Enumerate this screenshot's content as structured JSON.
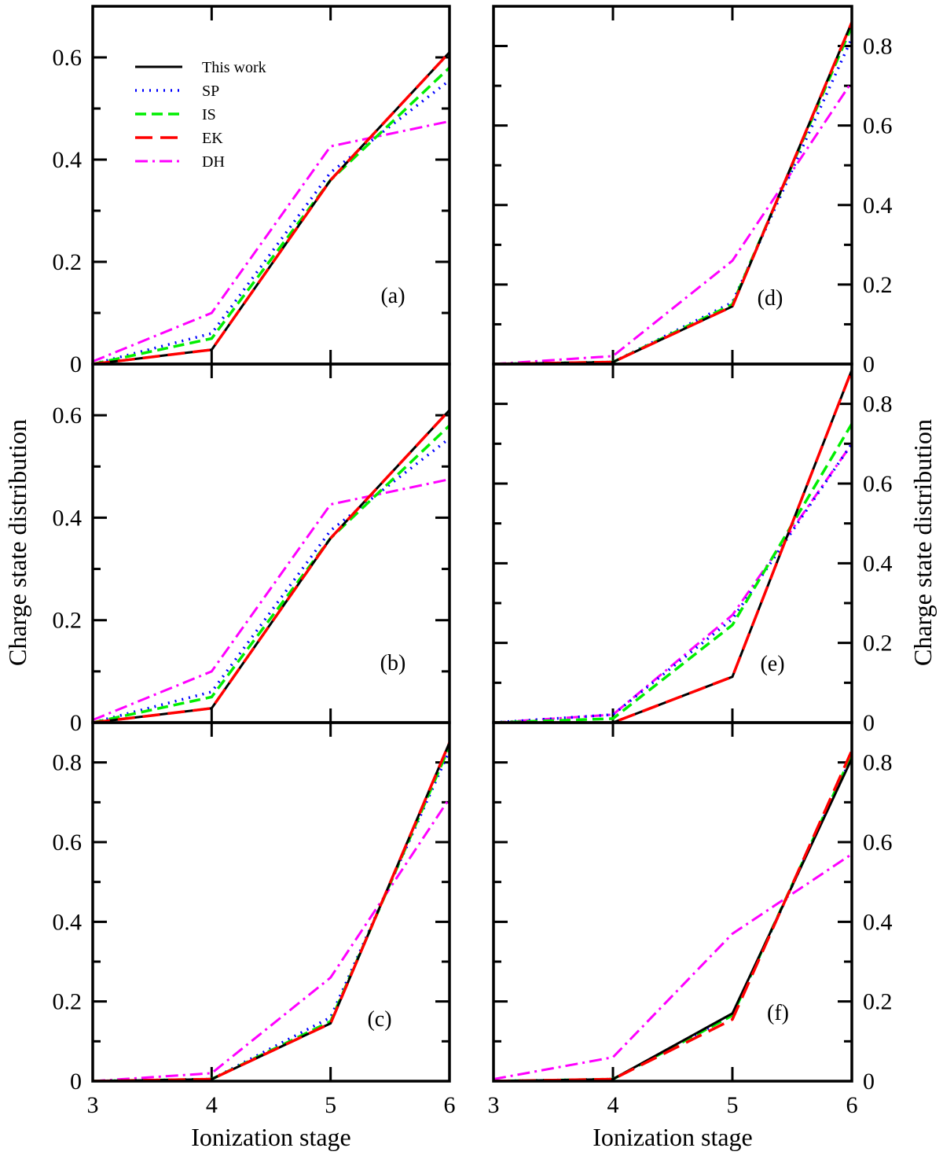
{
  "colors": {
    "This work": "#000000",
    "SP": "#0000ff",
    "IS": "#00ee00",
    "EK": "#ff0000",
    "DH": "#ff00ff"
  },
  "chart_data": {
    "type": "line",
    "xlabel": "Ionization stage",
    "ylabel": "Charge state distribution",
    "x": [
      3,
      4,
      5,
      6
    ],
    "xlim": [
      3,
      6
    ],
    "x_ticks": [
      "3",
      "4",
      "5",
      "6"
    ],
    "legend": {
      "placement": "top-left (panel a)",
      "entries": [
        "This work",
        "SP",
        "IS",
        "EK",
        "DH"
      ]
    },
    "panels": [
      {
        "label": "(a)",
        "ylim": [
          0,
          0.7
        ],
        "y_ticks": [
          "0",
          "0.2",
          "0.4",
          "0.6"
        ],
        "series": [
          {
            "name": "This work",
            "values": [
              0,
              0.028,
              0.36,
              0.61
            ]
          },
          {
            "name": "SP",
            "values": [
              0,
              0.06,
              0.375,
              0.555
            ]
          },
          {
            "name": "IS",
            "values": [
              0,
              0.05,
              0.36,
              0.58
            ]
          },
          {
            "name": "EK",
            "values": [
              0,
              0.028,
              0.36,
              0.61
            ]
          },
          {
            "name": "DH",
            "values": [
              0.005,
              0.1,
              0.426,
              0.475
            ]
          }
        ]
      },
      {
        "label": "(b)",
        "ylim": [
          0,
          0.7
        ],
        "y_ticks": [
          "0",
          "0.2",
          "0.4",
          "0.6"
        ],
        "series": [
          {
            "name": "This work",
            "values": [
              0,
              0.028,
              0.36,
              0.61
            ]
          },
          {
            "name": "SP",
            "values": [
              0,
              0.06,
              0.375,
              0.555
            ]
          },
          {
            "name": "IS",
            "values": [
              0,
              0.05,
              0.36,
              0.58
            ]
          },
          {
            "name": "EK",
            "values": [
              0,
              0.028,
              0.36,
              0.61
            ]
          },
          {
            "name": "DH",
            "values": [
              0.005,
              0.1,
              0.426,
              0.475
            ]
          }
        ]
      },
      {
        "label": "(c)",
        "ylim": [
          0,
          0.9
        ],
        "y_ticks": [
          "0",
          "0.2",
          "0.4",
          "0.6",
          "0.8"
        ],
        "series": [
          {
            "name": "This work",
            "values": [
              0,
              0.005,
              0.145,
              0.85
            ]
          },
          {
            "name": "SP",
            "values": [
              0,
              0.005,
              0.16,
              0.83
            ]
          },
          {
            "name": "IS",
            "values": [
              0,
              0.005,
              0.15,
              0.84
            ]
          },
          {
            "name": "EK",
            "values": [
              0,
              0.005,
              0.145,
              0.85
            ]
          },
          {
            "name": "DH",
            "values": [
              0,
              0.02,
              0.26,
              0.71
            ]
          }
        ]
      },
      {
        "label": "(d)",
        "ylim": [
          0,
          0.9
        ],
        "y_ticks": [
          "0",
          "0.2",
          "0.4",
          "0.6",
          "0.8"
        ],
        "series": [
          {
            "name": "This work",
            "values": [
              0,
              0.005,
              0.145,
              0.86
            ]
          },
          {
            "name": "SP",
            "values": [
              0,
              0.005,
              0.155,
              0.82
            ]
          },
          {
            "name": "IS",
            "values": [
              0,
              0.005,
              0.15,
              0.85
            ]
          },
          {
            "name": "EK",
            "values": [
              0,
              0.005,
              0.145,
              0.86
            ]
          },
          {
            "name": "DH",
            "values": [
              0,
              0.02,
              0.26,
              0.71
            ]
          }
        ]
      },
      {
        "label": "(e)",
        "ylim": [
          0,
          0.9
        ],
        "y_ticks": [
          "0",
          "0.2",
          "0.4",
          "0.6",
          "0.8"
        ],
        "series": [
          {
            "name": "This work",
            "values": [
              0,
              0,
              0.115,
              0.885
            ]
          },
          {
            "name": "SP",
            "values": [
              0,
              0.02,
              0.26,
              0.7
            ]
          },
          {
            "name": "IS",
            "values": [
              0,
              0.01,
              0.245,
              0.75
            ]
          },
          {
            "name": "EK",
            "values": [
              0,
              0,
              0.115,
              0.885
            ]
          },
          {
            "name": "DH",
            "values": [
              0,
              0.02,
              0.27,
              0.7
            ]
          }
        ]
      },
      {
        "label": "(f)",
        "ylim": [
          0,
          0.9
        ],
        "y_ticks": [
          "0",
          "0.2",
          "0.4",
          "0.6",
          "0.8"
        ],
        "series": [
          {
            "name": "This work",
            "values": [
              0,
              0.005,
              0.17,
              0.81
            ]
          },
          {
            "name": "SP",
            "values": [
              0,
              0.005,
              0.165,
              0.815
            ]
          },
          {
            "name": "IS",
            "values": [
              0,
              0.005,
              0.165,
              0.82
            ]
          },
          {
            "name": "EK",
            "values": [
              0,
              0.005,
              0.155,
              0.83
            ]
          },
          {
            "name": "DH",
            "values": [
              0.005,
              0.06,
              0.37,
              0.57
            ]
          }
        ]
      }
    ]
  }
}
